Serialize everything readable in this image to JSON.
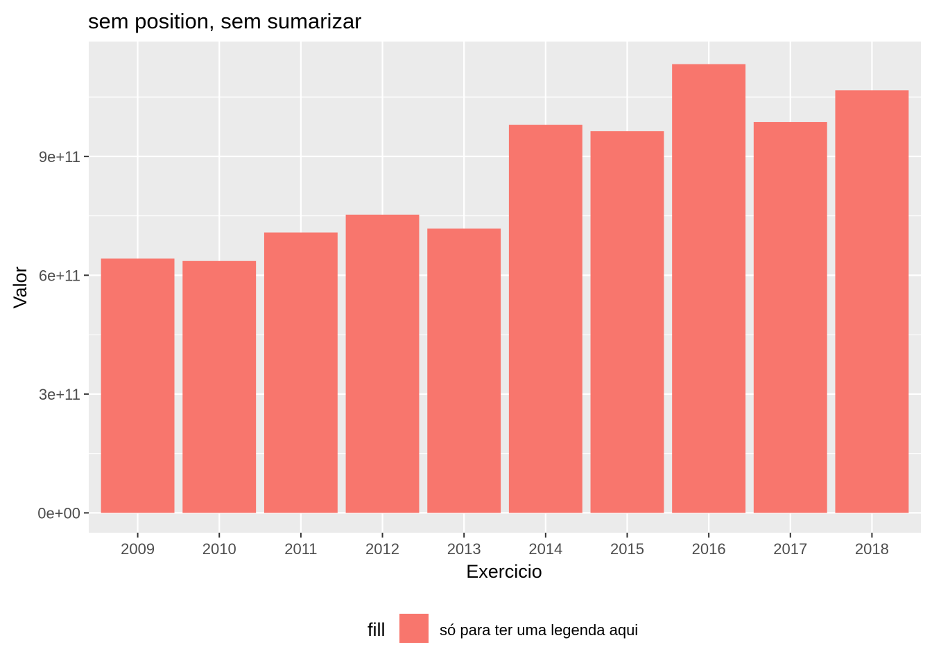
{
  "chart_data": {
    "type": "bar",
    "title": "sem position, sem sumarizar",
    "xlabel": "Exercicio",
    "ylabel": "Valor",
    "categories": [
      "2009",
      "2010",
      "2011",
      "2012",
      "2013",
      "2014",
      "2015",
      "2016",
      "2017",
      "2018"
    ],
    "values": [
      642000000000,
      636000000000,
      708000000000,
      753000000000,
      718000000000,
      980000000000,
      964000000000,
      1133000000000,
      987000000000,
      1067000000000
    ],
    "ylim": [
      -50000000000,
      1190000000000
    ],
    "yticks": [
      {
        "value": 0,
        "label": "0e+00"
      },
      {
        "value": 300000000000,
        "label": "3e+11"
      },
      {
        "value": 600000000000,
        "label": "6e+11"
      },
      {
        "value": 900000000000,
        "label": "9e+11"
      }
    ],
    "grid": true,
    "legend": {
      "position": "bottom",
      "title": "fill",
      "entries": [
        {
          "label": "só para ter uma legenda aqui",
          "color": "#F8766D"
        }
      ]
    },
    "colors": {
      "bar": "#F8766D",
      "panel": "#EBEBEB",
      "grid_major": "#FFFFFF",
      "tick_text": "#4D4D4D",
      "tick_mark": "#333333"
    }
  }
}
